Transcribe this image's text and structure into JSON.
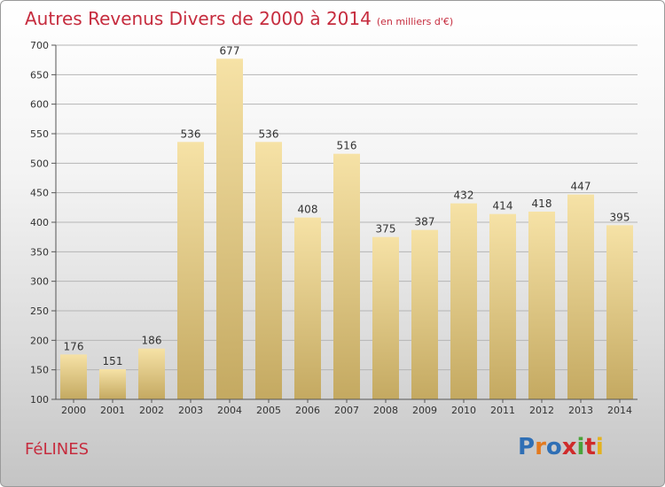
{
  "title": "Autres Revenus Divers de 2000 à 2014",
  "subtitle": "(en milliers d'€)",
  "commune": "FéLINES",
  "logo": {
    "letters": [
      "P",
      "r",
      "o",
      "x",
      "i",
      "t",
      "i"
    ],
    "colors": [
      "#2f6fb5",
      "#e37a1f",
      "#2f6fb5",
      "#cf2b2b",
      "#4aa33a",
      "#cf2b2b",
      "#e3b21f"
    ]
  },
  "colors": {
    "bar_top": "#f6e2a6",
    "bar_bottom": "#c4a961",
    "grid": "#b5b5b5"
  },
  "chart_data": {
    "type": "bar",
    "categories": [
      "2000",
      "2001",
      "2002",
      "2003",
      "2004",
      "2005",
      "2006",
      "2007",
      "2008",
      "2009",
      "2010",
      "2011",
      "2012",
      "2013",
      "2014"
    ],
    "values": [
      176,
      151,
      186,
      536,
      677,
      536,
      408,
      516,
      375,
      387,
      432,
      414,
      418,
      447,
      395
    ],
    "data_labels": [
      "176",
      "151",
      "186",
      "536",
      "677",
      "536",
      "408",
      "516",
      "375",
      "387",
      "432",
      "414",
      "418",
      "447",
      "395"
    ],
    "yticks": [
      100,
      150,
      200,
      250,
      300,
      350,
      400,
      450,
      500,
      550,
      600,
      650,
      700
    ],
    "ylim": [
      100,
      700
    ],
    "grid": true
  }
}
